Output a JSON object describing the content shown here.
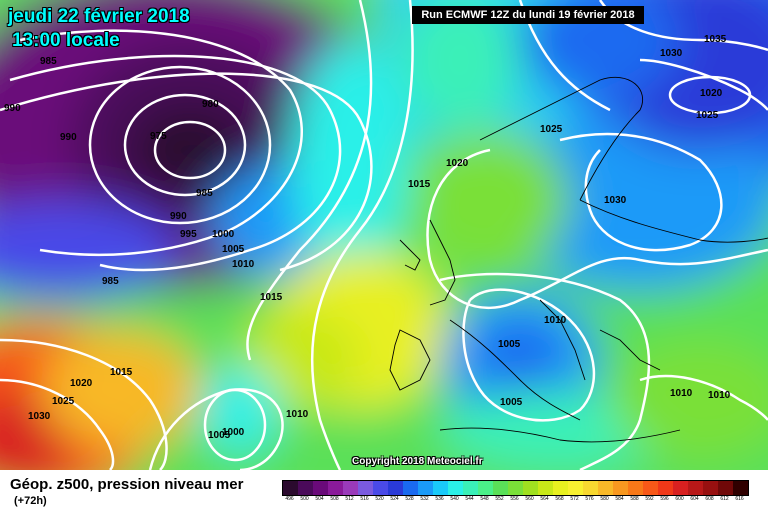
{
  "header": {
    "date_line": "jeudi 22 février 2018",
    "time_line": "13:00 locale",
    "run_info": "Run ECMWF 12Z du lundi 19 février 2018"
  },
  "footer": {
    "title": "Géop. z500, pression niveau mer",
    "subtitle": "(+72h)",
    "copyright": "Copyright 2018 Meteociel.fr"
  },
  "legend": {
    "labels": [
      "496",
      "500",
      "504",
      "508",
      "512",
      "516",
      "520",
      "524",
      "528",
      "532",
      "536",
      "540",
      "544",
      "548",
      "552",
      "556",
      "560",
      "564",
      "568",
      "572",
      "576",
      "580",
      "584",
      "588",
      "592",
      "596",
      "600",
      "604",
      "608",
      "612",
      "616"
    ],
    "colors": [
      "#2b0a2e",
      "#4a0a5a",
      "#6a0a7a",
      "#8a1a9a",
      "#9a3aba",
      "#7a5ae0",
      "#4a4ae8",
      "#2a3ad8",
      "#1a6af0",
      "#1a9af8",
      "#1acafa",
      "#2af0e8",
      "#3af0b8",
      "#4af088",
      "#5ae058",
      "#7ae038",
      "#a0e020",
      "#c8e818",
      "#e8f020",
      "#f8f030",
      "#f8d830",
      "#f8b828",
      "#f89820",
      "#f87818",
      "#f85818",
      "#f03818",
      "#d82020",
      "#b81818",
      "#981010",
      "#700808",
      "#300000"
    ]
  },
  "isobar_labels": [
    "985",
    "990",
    "990",
    "980",
    "975",
    "985",
    "990",
    "995",
    "1000",
    "1005",
    "1010",
    "985",
    "1015",
    "1020",
    "1015",
    "1025",
    "1030",
    "1035",
    "1020",
    "1025",
    "1030",
    "1015",
    "1020",
    "1025",
    "1030",
    "1010",
    "1005",
    "1005",
    "1010",
    "1005",
    "1010",
    "1010",
    "1000"
  ]
}
